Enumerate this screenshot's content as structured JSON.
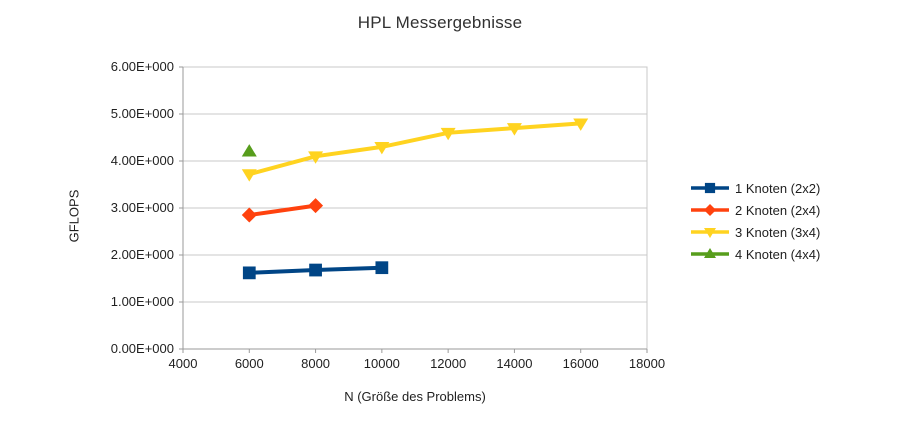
{
  "chart_data": {
    "type": "line",
    "title": "HPL Messergebnisse",
    "xlabel": "N (Größe des Problems)",
    "ylabel": "GFLOPS",
    "xlim": [
      4000,
      18000
    ],
    "ylim": [
      0,
      6
    ],
    "grid": "horizontal",
    "legend_position": "right",
    "x_ticks": [
      {
        "value": 4000,
        "label": "4000"
      },
      {
        "value": 6000,
        "label": "6000"
      },
      {
        "value": 8000,
        "label": "8000"
      },
      {
        "value": 10000,
        "label": "10000"
      },
      {
        "value": 12000,
        "label": "12000"
      },
      {
        "value": 14000,
        "label": "14000"
      },
      {
        "value": 16000,
        "label": "16000"
      },
      {
        "value": 18000,
        "label": "18000"
      }
    ],
    "y_ticks": [
      {
        "value": 0,
        "label": "0.00E+000"
      },
      {
        "value": 1,
        "label": "1.00E+000"
      },
      {
        "value": 2,
        "label": "2.00E+000"
      },
      {
        "value": 3,
        "label": "3.00E+000"
      },
      {
        "value": 4,
        "label": "4.00E+000"
      },
      {
        "value": 5,
        "label": "5.00E+000"
      },
      {
        "value": 6,
        "label": "6.00E+000"
      }
    ],
    "series": [
      {
        "name": "1 Knoten (2x2)",
        "color": "#004586",
        "marker": "square",
        "x": [
          6000,
          8000,
          10000
        ],
        "y": [
          1.62,
          1.68,
          1.73
        ]
      },
      {
        "name": "2 Knoten (2x4)",
        "color": "#ff420e",
        "marker": "diamond",
        "x": [
          6000,
          8000
        ],
        "y": [
          2.85,
          3.05
        ]
      },
      {
        "name": "3 Knoten (3x4)",
        "color": "#ffd320",
        "marker": "triangle-down",
        "x": [
          6000,
          8000,
          10000,
          12000,
          14000,
          16000
        ],
        "y": [
          3.72,
          4.1,
          4.3,
          4.6,
          4.7,
          4.8
        ]
      },
      {
        "name": "4 Knoten (4x4)",
        "color": "#579d1c",
        "marker": "triangle-up",
        "x": [
          6000
        ],
        "y": [
          4.2
        ]
      }
    ],
    "colors": {
      "grid": "#c8c8c8",
      "axis": "#9a9a9a",
      "text": "#1f1f1f",
      "background": "#ffffff"
    }
  }
}
